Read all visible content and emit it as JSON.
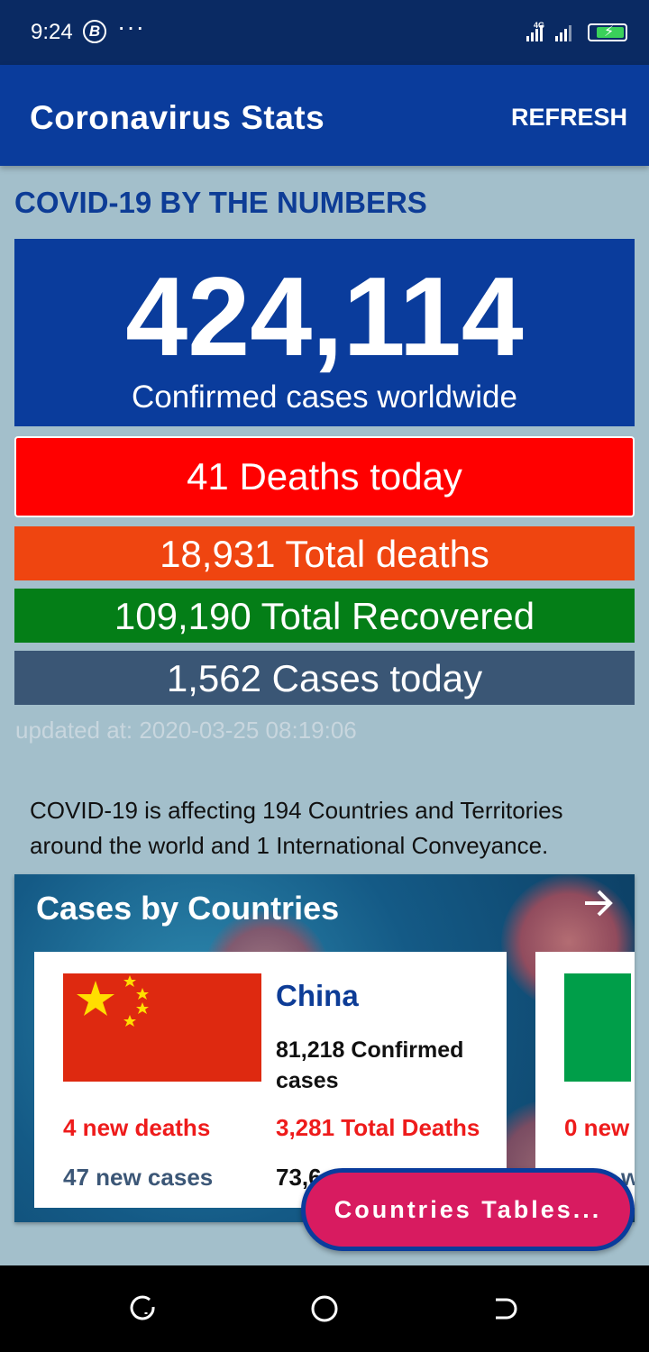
{
  "status_bar": {
    "time": "9:24",
    "badge": "B",
    "dots": "···",
    "network": "4G"
  },
  "app_bar": {
    "title": "Coronavirus Stats",
    "refresh_label": "REFRESH"
  },
  "summary": {
    "heading": "COVID-19 BY THE NUMBERS",
    "confirmed_total": "424,114",
    "confirmed_label": "Confirmed cases worldwide",
    "deaths_today": "41 Deaths today",
    "total_deaths": "18,931 Total deaths",
    "total_recovered": "109,190 Total Recovered",
    "cases_today": "1,562 Cases today",
    "updated_at": "updated at: 2020-03-25 08:19:06",
    "affecting_text": "COVID-19 is affecting 194 Countries and Territories around the world and 1 International Conveyance."
  },
  "countries_section": {
    "title": "Cases by Countries",
    "cards": [
      {
        "name": "China",
        "confirmed": "81,218 Confirmed cases",
        "new_deaths": "4 new deaths",
        "total_deaths": "3,281 Total Deaths",
        "new_cases": "47 new cases",
        "recovered_partial": "73,6"
      },
      {
        "name": "",
        "new_deaths": "0 new",
        "new_cases": "w"
      }
    ]
  },
  "fab": {
    "label": "Countries Tables..."
  },
  "colors": {
    "primary": "#0a3c9c",
    "deaths_today": "#ff0000",
    "total_deaths": "#ef4510",
    "recovered": "#047e17",
    "cases_today": "#3a5675",
    "fab": "#d81b60"
  }
}
